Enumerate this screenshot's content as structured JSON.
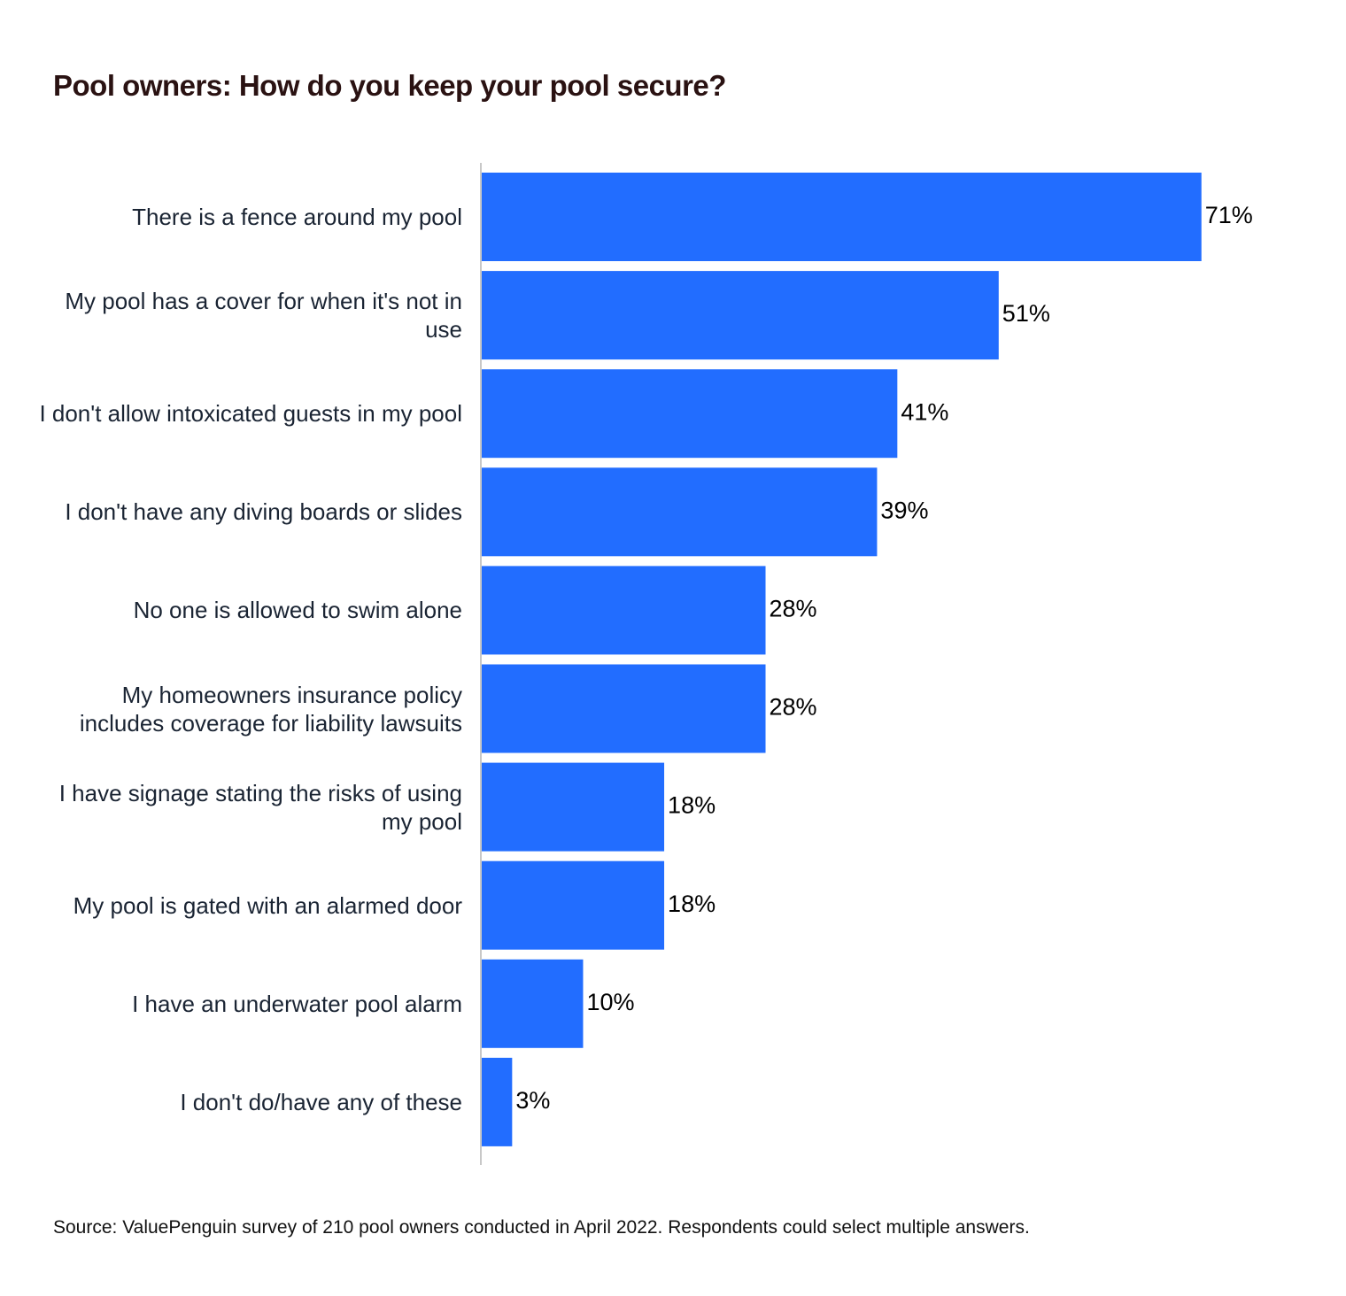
{
  "chart_data": {
    "type": "hbar",
    "title": "Pool owners: How do you keep your pool secure?",
    "categories": [
      "There is a fence around my pool",
      "My pool has a cover for when it's not in use",
      "I don't allow intoxicated guests in my pool",
      "I don't have any diving boards or slides",
      "No one is allowed to swim alone",
      "My homeowners insurance policy includes coverage for liability lawsuits",
      "I have signage stating the risks of using my pool",
      "My pool is gated with an alarmed door",
      "I have an underwater pool alarm",
      "I don't do/have any of these"
    ],
    "values": [
      71,
      51,
      41,
      39,
      28,
      28,
      18,
      18,
      10,
      3
    ],
    "value_labels": [
      "71%",
      "51%",
      "41%",
      "39%",
      "28%",
      "28%",
      "18%",
      "18%",
      "10%",
      "3%"
    ],
    "color": "#226dff",
    "xlim": [
      0,
      85
    ],
    "source": "Source: ValuePenguin survey of 210 pool owners conducted in April 2022. Respondents could select multiple answers."
  }
}
